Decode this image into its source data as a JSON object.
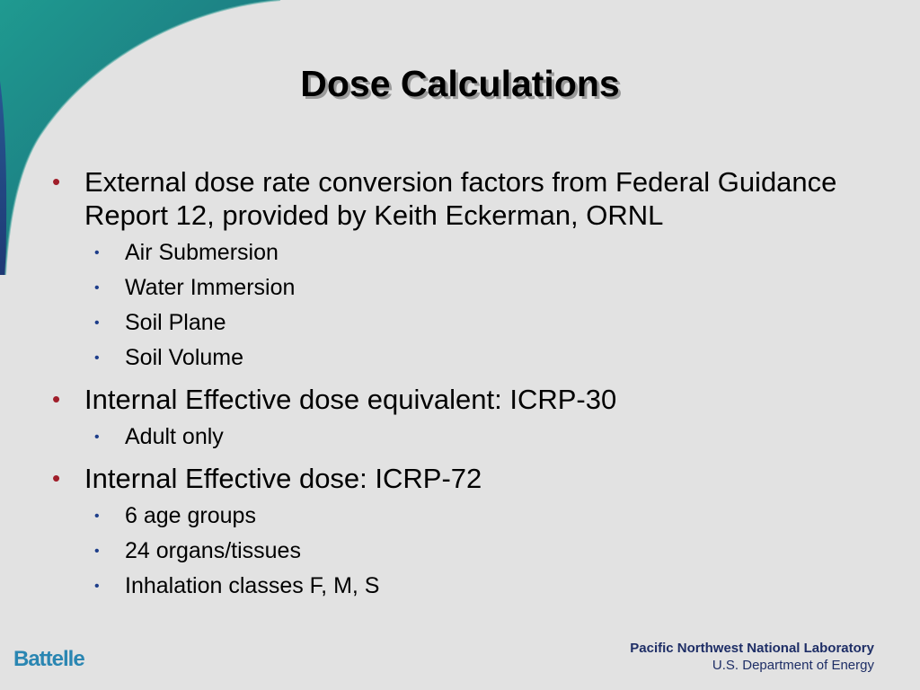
{
  "slide": {
    "title": "Dose Calculations",
    "items": [
      {
        "text": "External dose rate conversion factors from Federal Guidance Report 12, provided by Keith Eckerman, ORNL",
        "subitems": [
          "Air Submersion",
          "Water Immersion",
          "Soil Plane",
          "Soil Volume"
        ]
      },
      {
        "text": "Internal Effective dose equivalent:  ICRP-30",
        "subitems": [
          "Adult only"
        ]
      },
      {
        "text": "Internal Effective dose: ICRP-72",
        "subitems": [
          "6 age groups",
          "24 organs/tissues",
          "Inhalation classes F, M, S"
        ]
      }
    ]
  },
  "footer": {
    "left_logo": "Battelle",
    "lab_name": "Pacific Northwest National Laboratory",
    "department": "U.S. Department of Energy"
  },
  "colors": {
    "background": "#e2e2e2",
    "bullet_level1": "#a01e2a",
    "bullet_level2": "#1e3e8a",
    "swoosh_teal": "#1f8a86",
    "swoosh_blue": "#27387e",
    "battelle_blue": "#2a86b2",
    "lab_navy": "#1e2e66"
  },
  "icons": {
    "swoosh": "corner-swoosh-graphic"
  }
}
